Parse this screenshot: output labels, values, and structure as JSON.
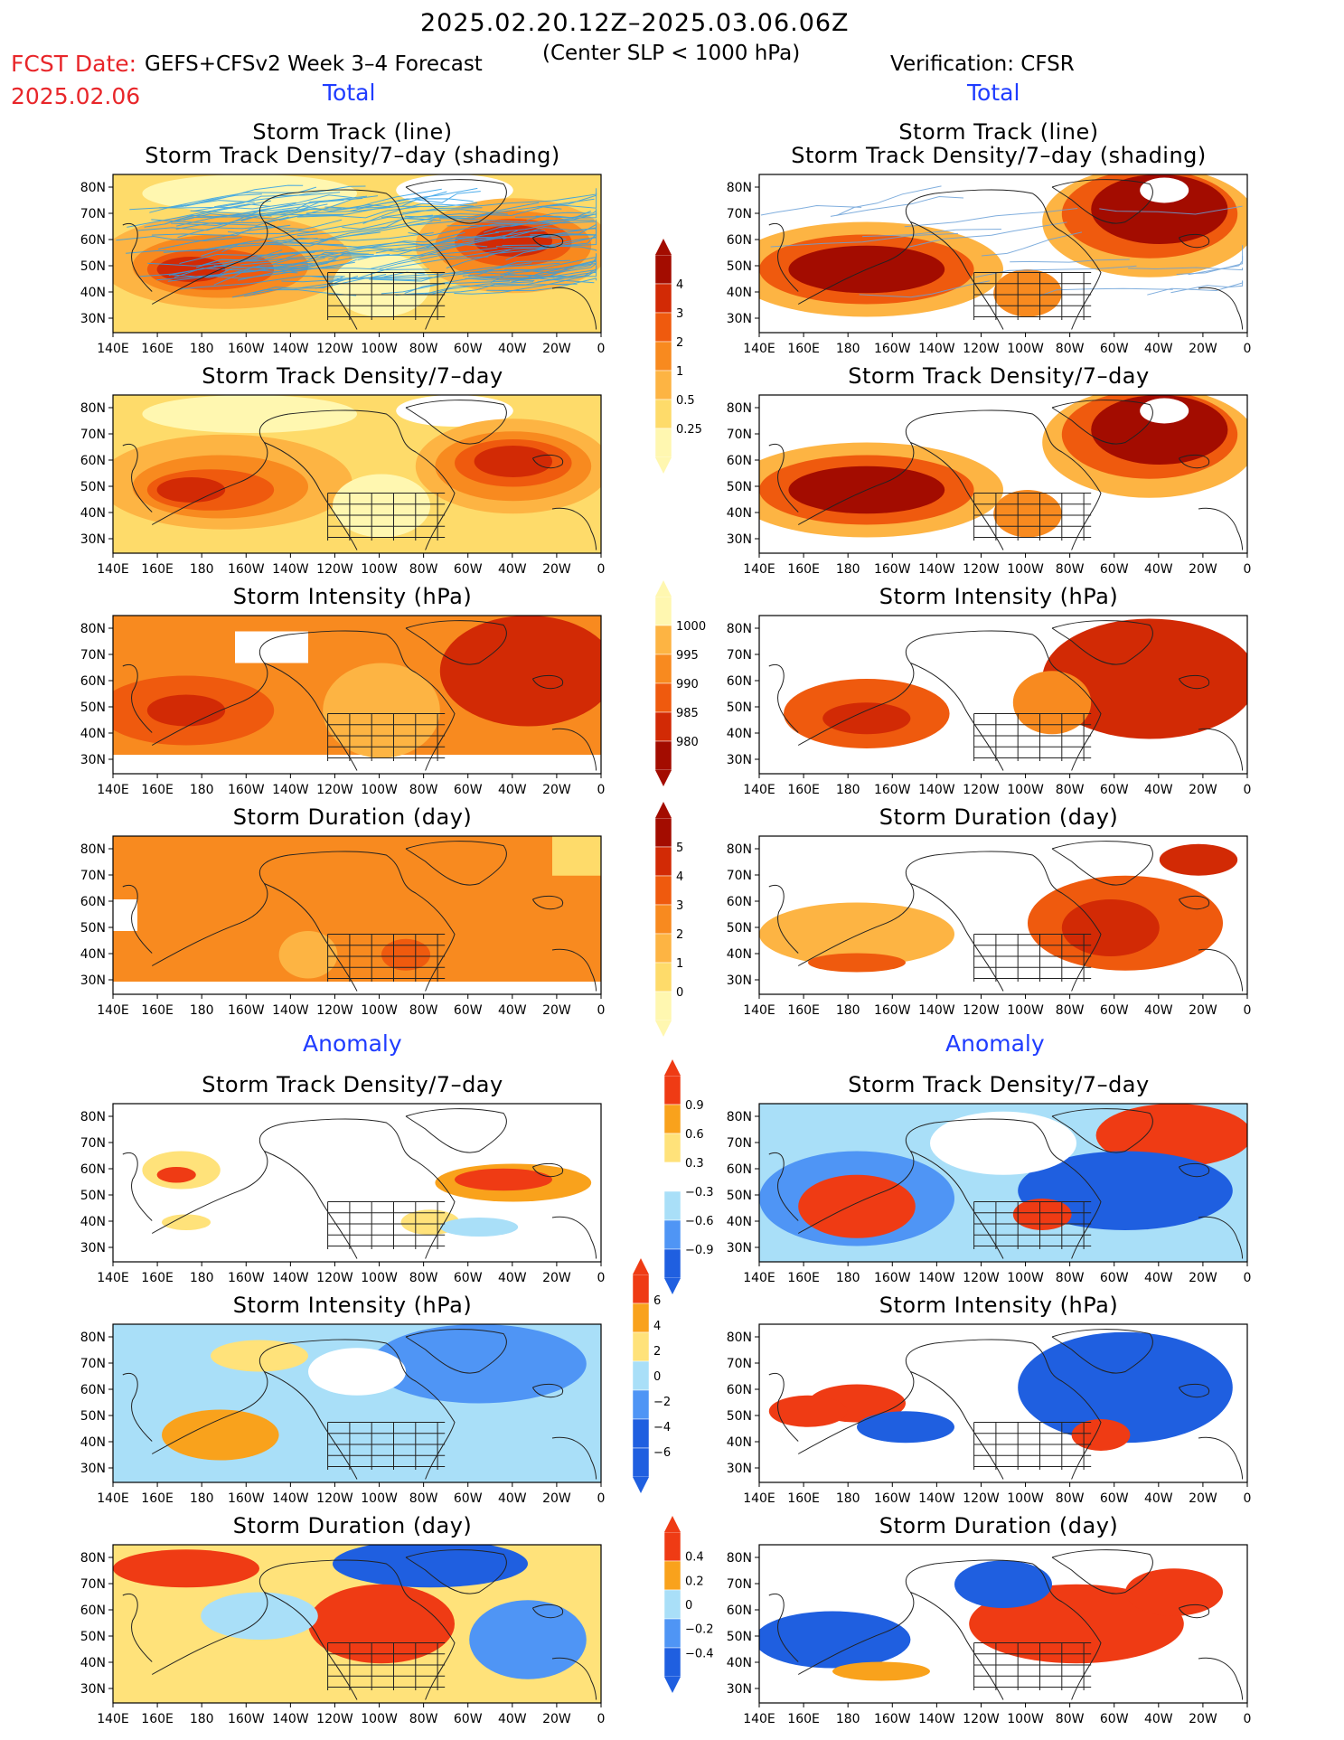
{
  "header": {
    "period": "2025.02.20.12Z–2025.03.06.06Z",
    "criterion": "(Center SLP < 1000 hPa)",
    "fcst_label": "FCST Date:",
    "fcst_date": "2025.02.06",
    "model": "GEFS+CFSv2 Week 3–4 Forecast",
    "verification": "Verification: CFSR"
  },
  "sections": {
    "total": "Total",
    "anomaly": "Anomaly"
  },
  "titles": {
    "track_line": "Storm Track (line)",
    "track_density_shading": "Storm Track Density/7–day (shading)",
    "track_density": "Storm Track Density/7–day",
    "intensity": "Storm Intensity (hPa)",
    "duration": "Storm Duration (day)"
  },
  "axes": {
    "lon_ticks": [
      "140E",
      "160E",
      "180",
      "160W",
      "140W",
      "120W",
      "100W",
      "80W",
      "60W",
      "40W",
      "20W",
      "0"
    ],
    "lat_ticks": [
      "80N",
      "70N",
      "60N",
      "50N",
      "40N",
      "30N"
    ]
  },
  "colorbars": {
    "density_total": [
      "4",
      "3",
      "2",
      "1",
      "0.5",
      "0.25"
    ],
    "intensity_total": [
      "1000",
      "995",
      "990",
      "985",
      "980"
    ],
    "duration_total": [
      "5",
      "4",
      "3",
      "2",
      "1",
      "0"
    ],
    "density_anom": [
      "0.9",
      "0.6",
      "0.3",
      "−0.3",
      "−0.6",
      "−0.9"
    ],
    "intensity_anom": [
      "6",
      "4",
      "2",
      "0",
      "−2",
      "−4",
      "−6"
    ],
    "duration_anom": [
      "0.4",
      "0.2",
      "0",
      "−0.2",
      "−0.4"
    ]
  },
  "colors": {
    "warm": [
      "#fff7b0",
      "#fedb6a",
      "#fdb443",
      "#f88a1f",
      "#ef5a0e",
      "#d22a05",
      "#a30c00"
    ],
    "anom_neg": [
      "#1f5fe0",
      "#4f95f5",
      "#a9dff8"
    ],
    "anom_pos": [
      "#ffe27a",
      "#f9a21c",
      "#ef3b14"
    ],
    "track_fcst": "#2f9fe8",
    "track_obs": "#6aa0d8"
  }
}
